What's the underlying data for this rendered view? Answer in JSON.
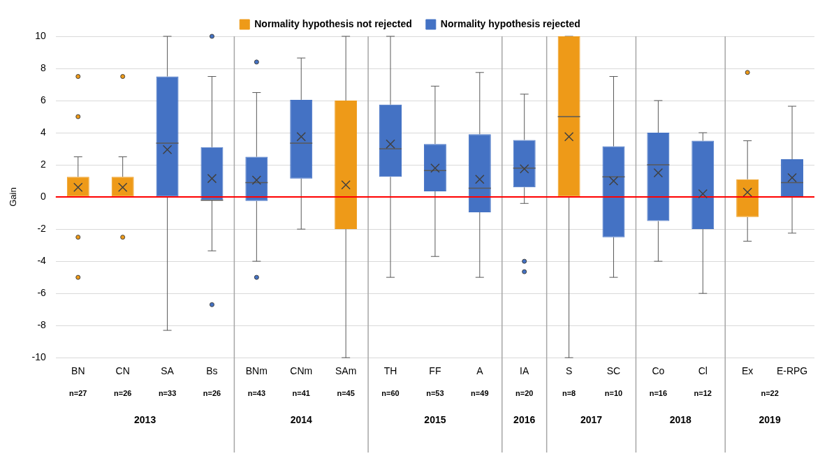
{
  "chart_data": {
    "type": "box",
    "ylabel": "Gain",
    "categories": [
      "BN",
      "CN",
      "SA",
      "Bs",
      "BNm",
      "CNm",
      "SAm",
      "TH",
      "FF",
      "A",
      "IA",
      "S",
      "SC",
      "Co",
      "Cl",
      "Ex",
      "E-RPG"
    ],
    "ylim": [
      -10,
      10
    ],
    "yticks": [
      -10,
      -8,
      -6,
      -4,
      -2,
      0,
      2,
      4,
      6,
      8,
      10
    ],
    "grid": "y",
    "legend": "top",
    "series": [
      {
        "name": "Normality hypothesis not rejected",
        "color": "#ee9a18",
        "boxes": [
          {
            "low": 0,
            "q1": 0,
            "median": 0,
            "q3": 1.25,
            "high": 2.5,
            "mean": 0.6,
            "outliers": [
              7.5,
              5,
              -2.5,
              -5
            ]
          },
          {
            "low": 0,
            "q1": 0,
            "median": 0,
            "q3": 1.25,
            "high": 2.5,
            "mean": 0.6,
            "outliers": [
              7.5,
              -2.5
            ]
          },
          null,
          null,
          null,
          null,
          {
            "low": -10,
            "q1": -2,
            "median": 0,
            "q3": 6,
            "high": 10,
            "mean": 0.75
          },
          null,
          null,
          null,
          null,
          {
            "low": -10,
            "q1": 0,
            "median": 5,
            "q3": 10,
            "high": 10,
            "mean": 3.75
          },
          null,
          null,
          null,
          {
            "low": -2.75,
            "q1": -1.25,
            "median": 0,
            "q3": 1.1,
            "high": 3.5,
            "mean": 0.3,
            "outliers": [
              7.75
            ]
          },
          null
        ]
      },
      {
        "name": "Normality hypothesis rejected",
        "color": "#4472c4",
        "boxes": [
          null,
          null,
          {
            "low": -8.3,
            "q1": 0,
            "median": 3.35,
            "q3": 7.5,
            "high": 10,
            "mean": 2.95
          },
          {
            "low": -3.35,
            "q1": -0.2,
            "median": -0.2,
            "q3": 3.1,
            "high": 7.5,
            "mean": 1.15,
            "outliers": [
              10,
              -6.7
            ]
          },
          {
            "low": -4,
            "q1": -0.25,
            "median": 0.9,
            "q3": 2.5,
            "high": 6.5,
            "mean": 1.05,
            "outliers": [
              8.4,
              -5
            ]
          },
          {
            "low": -2,
            "q1": 1.15,
            "median": 3.35,
            "q3": 6.05,
            "high": 8.65,
            "mean": 3.75
          },
          null,
          {
            "low": -5,
            "q1": 1.25,
            "median": 3,
            "q3": 5.75,
            "high": 10,
            "mean": 3.3
          },
          {
            "low": -3.7,
            "q1": 0.35,
            "median": 1.65,
            "q3": 3.3,
            "high": 6.9,
            "mean": 1.8
          },
          {
            "low": -5,
            "q1": -0.95,
            "median": 0.55,
            "q3": 3.9,
            "high": 7.75,
            "mean": 1.1
          },
          {
            "low": -0.4,
            "q1": 0.6,
            "median": 1.8,
            "q3": 3.55,
            "high": 6.4,
            "mean": 1.75,
            "outliers": [
              -4,
              -4.65
            ]
          },
          null,
          {
            "low": -5,
            "q1": -2.5,
            "median": 1.25,
            "q3": 3.15,
            "high": 7.5,
            "mean": 1
          },
          {
            "low": -4,
            "q1": -1.5,
            "median": 2,
            "q3": 4,
            "high": 6,
            "mean": 1.5
          },
          {
            "low": -6,
            "q1": -2,
            "median": 0,
            "q3": 3.5,
            "high": 4,
            "mean": 0.2
          },
          null,
          {
            "low": -2.25,
            "q1": 0.05,
            "median": 0.9,
            "q3": 2.35,
            "high": 5.65,
            "mean": 1.2
          }
        ]
      }
    ],
    "ref_lines": [
      {
        "axis": "y",
        "value": 0,
        "color": "#ff0000"
      }
    ],
    "annotations": [
      "n=27",
      "n=26",
      "n=33",
      "n=26",
      "n=43",
      "n=41",
      "n=45",
      "n=60",
      "n=53",
      "n=49",
      "n=20",
      "n=8",
      "n=10",
      "n=16",
      "n=12",
      "n=22",
      "2013",
      "2014",
      "2015",
      "2016",
      "2017",
      "2018",
      "2019"
    ]
  }
}
